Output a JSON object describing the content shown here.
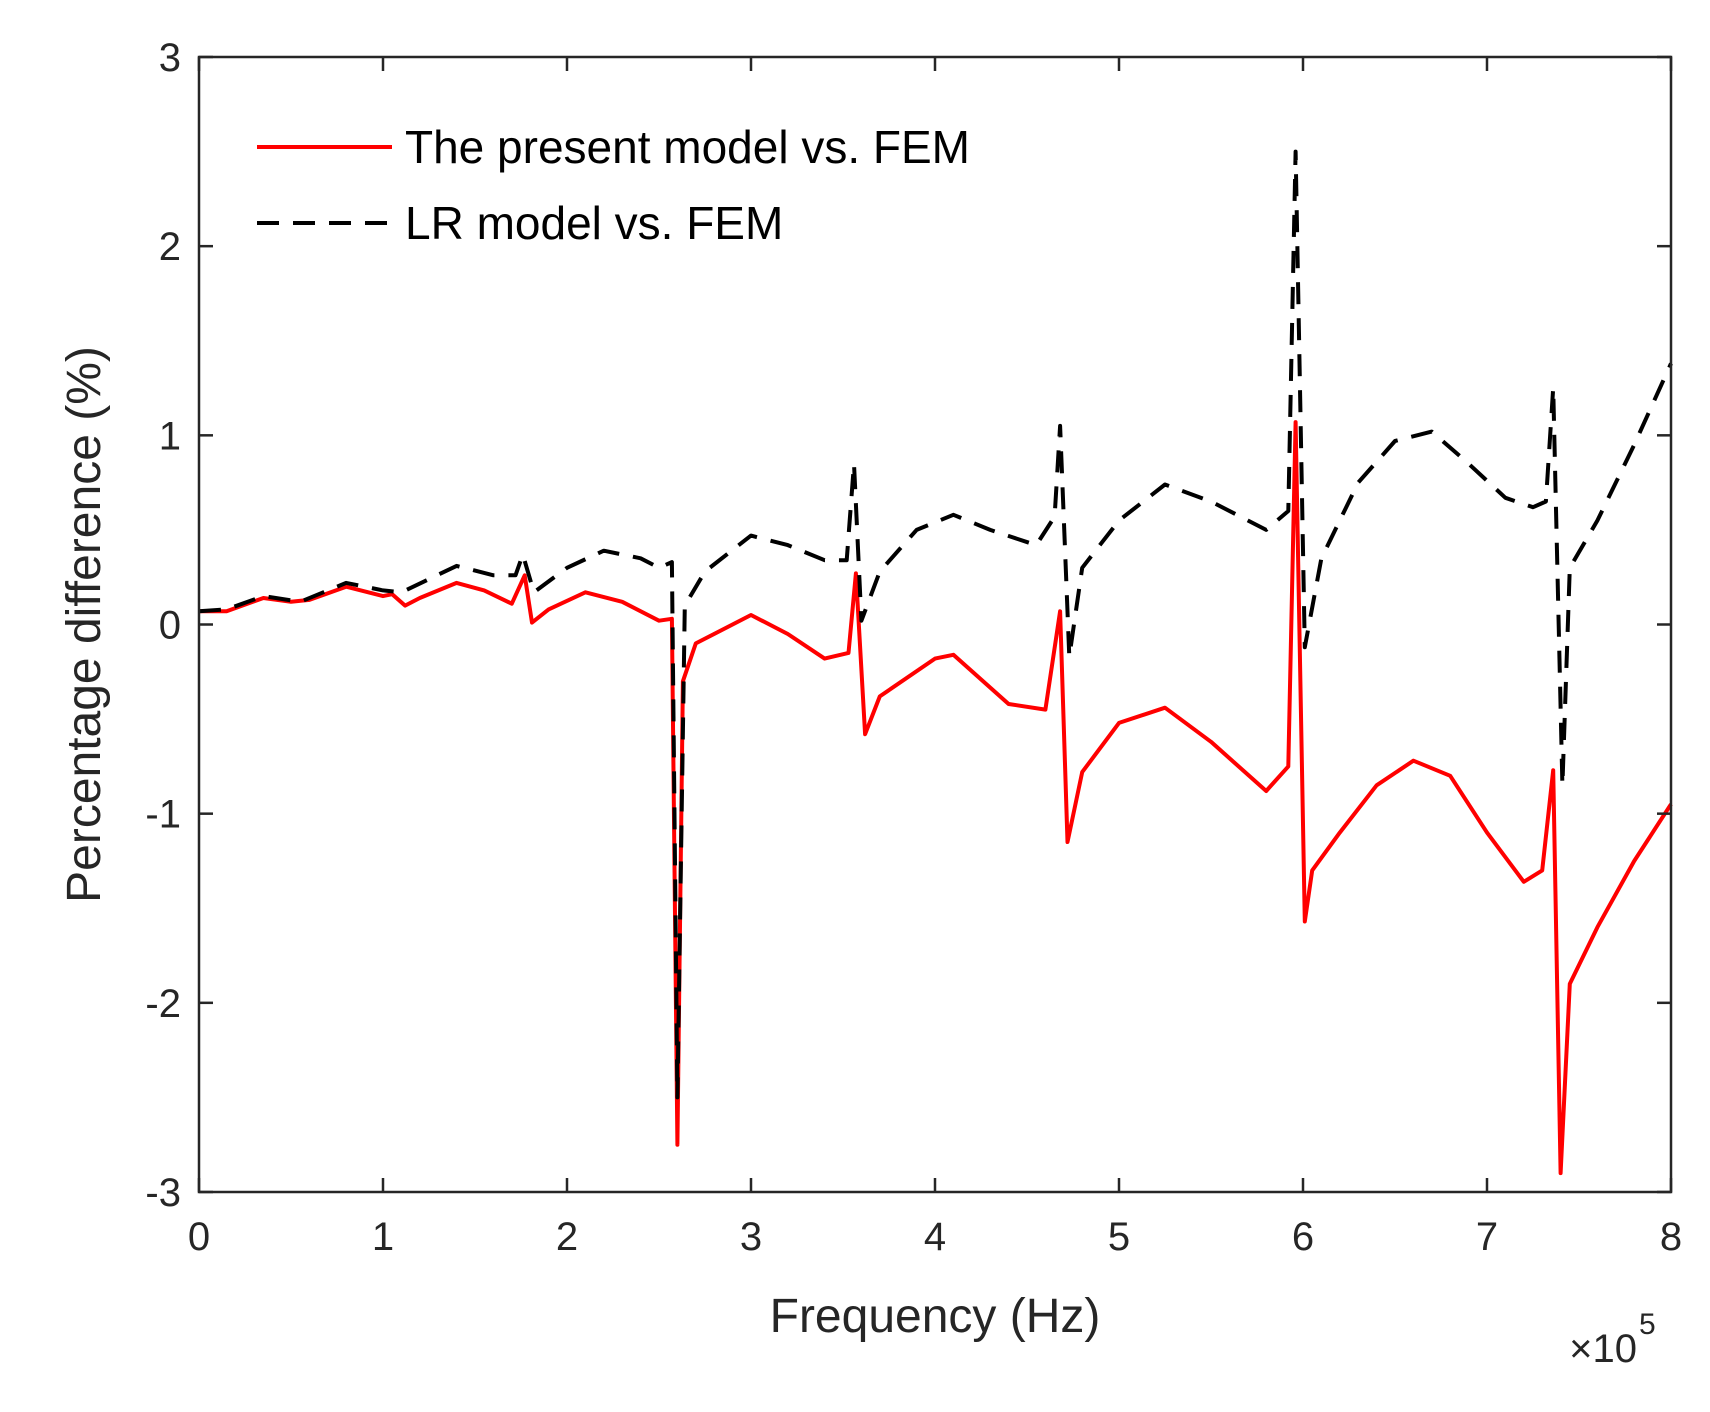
{
  "chart_data": {
    "type": "line",
    "title": "",
    "xlabel": "Frequency (Hz)",
    "ylabel": "Percentage difference (%)",
    "x_multiplier_label": "×10",
    "x_multiplier_exponent": "5",
    "xlim": [
      0,
      8
    ],
    "ylim": [
      -3,
      3
    ],
    "xticks": [
      0,
      1,
      2,
      3,
      4,
      5,
      6,
      7,
      8
    ],
    "xtick_labels": [
      "0",
      "1",
      "2",
      "3",
      "4",
      "5",
      "6",
      "7",
      "8"
    ],
    "yticks": [
      -3,
      -2,
      -1,
      0,
      1,
      2,
      3
    ],
    "ytick_labels": [
      "-3",
      "-2",
      "-1",
      "0",
      "1",
      "2",
      "3"
    ],
    "legend_position": "top-left",
    "series": [
      {
        "name": "The present model vs. FEM",
        "color": "#ff0000",
        "dash": "solid",
        "points": [
          [
            0.0,
            0.07
          ],
          [
            0.15,
            0.07
          ],
          [
            0.35,
            0.14
          ],
          [
            0.5,
            0.12
          ],
          [
            0.6,
            0.13
          ],
          [
            0.8,
            0.2
          ],
          [
            1.0,
            0.15
          ],
          [
            1.05,
            0.16
          ],
          [
            1.12,
            0.1
          ],
          [
            1.2,
            0.14
          ],
          [
            1.4,
            0.22
          ],
          [
            1.55,
            0.18
          ],
          [
            1.7,
            0.11
          ],
          [
            1.77,
            0.26
          ],
          [
            1.81,
            0.01
          ],
          [
            1.9,
            0.08
          ],
          [
            2.1,
            0.17
          ],
          [
            2.3,
            0.12
          ],
          [
            2.5,
            0.02
          ],
          [
            2.57,
            0.03
          ],
          [
            2.6,
            -2.75
          ],
          [
            2.63,
            -0.3
          ],
          [
            2.7,
            -0.1
          ],
          [
            3.0,
            0.05
          ],
          [
            3.2,
            -0.05
          ],
          [
            3.4,
            -0.18
          ],
          [
            3.53,
            -0.15
          ],
          [
            3.57,
            0.27
          ],
          [
            3.62,
            -0.58
          ],
          [
            3.7,
            -0.38
          ],
          [
            4.0,
            -0.18
          ],
          [
            4.1,
            -0.16
          ],
          [
            4.4,
            -0.42
          ],
          [
            4.6,
            -0.45
          ],
          [
            4.68,
            0.07
          ],
          [
            4.72,
            -1.15
          ],
          [
            4.8,
            -0.78
          ],
          [
            5.0,
            -0.52
          ],
          [
            5.25,
            -0.44
          ],
          [
            5.5,
            -0.62
          ],
          [
            5.8,
            -0.88
          ],
          [
            5.92,
            -0.75
          ],
          [
            5.96,
            1.07
          ],
          [
            6.01,
            -1.57
          ],
          [
            6.05,
            -1.3
          ],
          [
            6.2,
            -1.1
          ],
          [
            6.4,
            -0.85
          ],
          [
            6.6,
            -0.72
          ],
          [
            6.8,
            -0.8
          ],
          [
            7.0,
            -1.1
          ],
          [
            7.2,
            -1.36
          ],
          [
            7.3,
            -1.3
          ],
          [
            7.36,
            -0.77
          ],
          [
            7.4,
            -2.9
          ],
          [
            7.45,
            -1.9
          ],
          [
            7.6,
            -1.6
          ],
          [
            7.8,
            -1.25
          ],
          [
            8.0,
            -0.95
          ]
        ]
      },
      {
        "name": "LR model vs. FEM",
        "color": "#000000",
        "dash": "dashed",
        "points": [
          [
            0.0,
            0.07
          ],
          [
            0.15,
            0.08
          ],
          [
            0.35,
            0.15
          ],
          [
            0.55,
            0.12
          ],
          [
            0.8,
            0.22
          ],
          [
            1.0,
            0.18
          ],
          [
            1.1,
            0.17
          ],
          [
            1.4,
            0.31
          ],
          [
            1.6,
            0.26
          ],
          [
            1.72,
            0.26
          ],
          [
            1.76,
            0.37
          ],
          [
            1.82,
            0.17
          ],
          [
            2.0,
            0.3
          ],
          [
            2.2,
            0.39
          ],
          [
            2.4,
            0.35
          ],
          [
            2.5,
            0.3
          ],
          [
            2.57,
            0.33
          ],
          [
            2.6,
            -2.5
          ],
          [
            2.64,
            0.1
          ],
          [
            2.75,
            0.28
          ],
          [
            3.0,
            0.47
          ],
          [
            3.2,
            0.42
          ],
          [
            3.4,
            0.34
          ],
          [
            3.52,
            0.34
          ],
          [
            3.56,
            0.85
          ],
          [
            3.6,
            0.02
          ],
          [
            3.7,
            0.28
          ],
          [
            3.9,
            0.5
          ],
          [
            4.1,
            0.58
          ],
          [
            4.3,
            0.5
          ],
          [
            4.55,
            0.42
          ],
          [
            4.65,
            0.57
          ],
          [
            4.68,
            1.05
          ],
          [
            4.73,
            -0.17
          ],
          [
            4.8,
            0.3
          ],
          [
            5.0,
            0.55
          ],
          [
            5.25,
            0.74
          ],
          [
            5.5,
            0.65
          ],
          [
            5.8,
            0.5
          ],
          [
            5.92,
            0.6
          ],
          [
            5.96,
            2.5
          ],
          [
            6.01,
            -0.12
          ],
          [
            6.1,
            0.35
          ],
          [
            6.3,
            0.75
          ],
          [
            6.5,
            0.97
          ],
          [
            6.7,
            1.02
          ],
          [
            6.9,
            0.85
          ],
          [
            7.1,
            0.67
          ],
          [
            7.25,
            0.62
          ],
          [
            7.32,
            0.65
          ],
          [
            7.36,
            1.25
          ],
          [
            7.41,
            -0.85
          ],
          [
            7.45,
            0.3
          ],
          [
            7.6,
            0.55
          ],
          [
            7.8,
            0.95
          ],
          [
            8.0,
            1.38
          ]
        ]
      }
    ]
  }
}
